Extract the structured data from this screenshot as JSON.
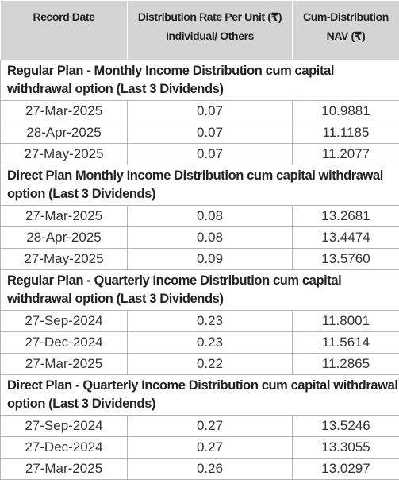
{
  "table": {
    "header": [
      "Record Date",
      "Distribution Rate Per Unit (₹)",
      "Individual/ Others",
      "Cum-Distribution NAV (₹)"
    ],
    "sections": [
      {
        "title": "Regular Plan - Monthly Income Distribution cum capital withdrawal option (Last 3 Dividends)",
        "rows": [
          [
            "27-Mar-2025",
            "0.07",
            "10.9881"
          ],
          [
            "28-Apr-2025",
            "0.07",
            "11.1185"
          ],
          [
            "27-May-2025",
            "0.07",
            "11.2077"
          ]
        ]
      },
      {
        "title": "Direct Plan Monthly Income Distribution cum capital withdrawal option (Last 3 Dividends)",
        "rows": [
          [
            "27-Mar-2025",
            "0.08",
            "13.2681"
          ],
          [
            "28-Apr-2025",
            "0.08",
            "13.4474"
          ],
          [
            "27-May-2025",
            "0.09",
            "13.5760"
          ]
        ]
      },
      {
        "title": "Regular Plan - Quarterly Income Distribution cum capital withdrawal option (Last 3 Dividends)",
        "rows": [
          [
            "27-Sep-2024",
            "0.23",
            "11.8001"
          ],
          [
            "27-Dec-2024",
            "0.23",
            "11.5614"
          ],
          [
            "27-Mar-2025",
            "0.22",
            "11.2865"
          ]
        ]
      },
      {
        "title": "Direct Plan - Quarterly Income Distribution cum capital withdrawal option (Last 3 Dividends)",
        "rows": [
          [
            "27-Sep-2024",
            "0.27",
            "13.5246"
          ],
          [
            "27-Dec-2024",
            "0.27",
            "13.3055"
          ],
          [
            "27-Mar-2025",
            "0.26",
            "13.0297"
          ]
        ]
      }
    ]
  }
}
